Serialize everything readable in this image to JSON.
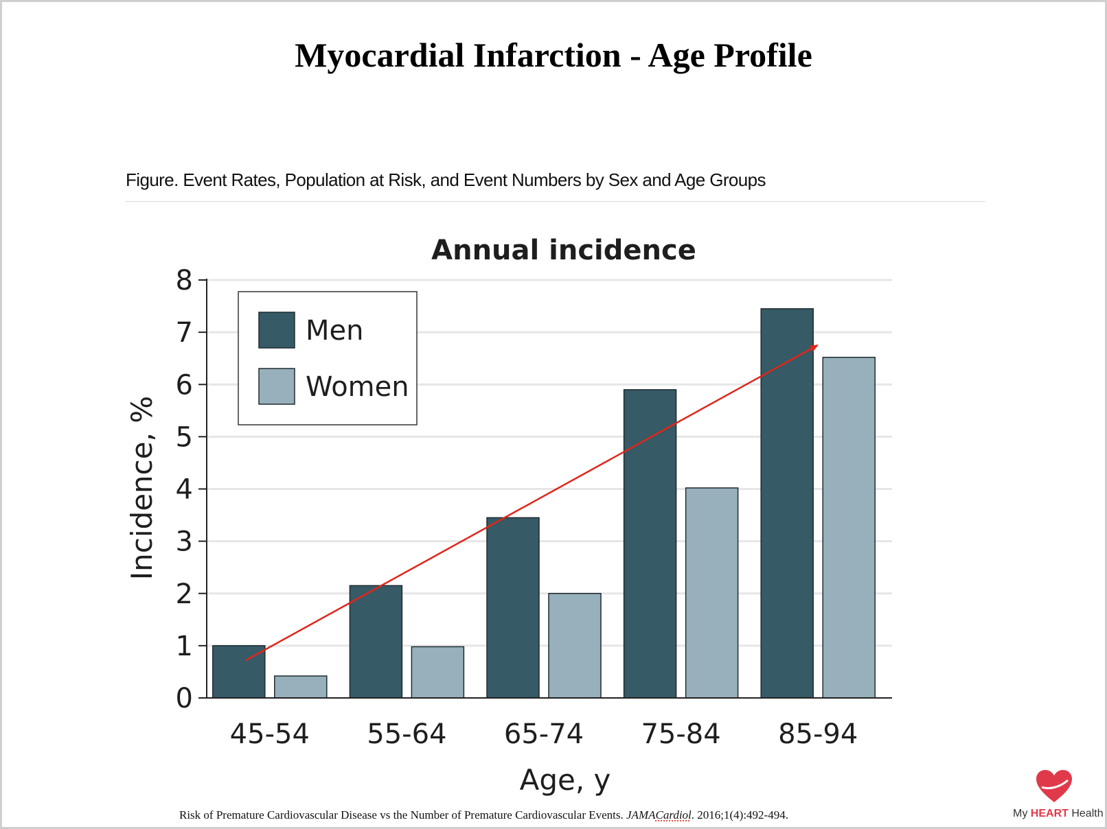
{
  "slide": {
    "title": "Myocardial Infarction - Age Profile",
    "figure_caption": "Figure. Event Rates, Population at Risk, and Event Numbers by Sex and Age Groups"
  },
  "colors": {
    "men": "#365a66",
    "women": "#97b0bb",
    "arrow": "#e0261a",
    "grid": "#e6e6e6"
  },
  "chart_data": {
    "type": "bar",
    "title": "Annual incidence",
    "xlabel": "Age, y",
    "ylabel": "Incidence, %",
    "categories": [
      "45-54",
      "55-64",
      "65-74",
      "75-84",
      "85-94"
    ],
    "series": [
      {
        "name": "Men",
        "values": [
          1.0,
          2.15,
          3.45,
          5.9,
          7.45
        ]
      },
      {
        "name": "Women",
        "values": [
          0.42,
          0.98,
          2.0,
          4.02,
          6.52
        ]
      }
    ],
    "ylim": [
      0,
      8
    ],
    "yticks": [
      "0",
      "1",
      "2",
      "3",
      "4",
      "5",
      "6",
      "7",
      "8"
    ],
    "grid": true,
    "legend_position": "top-left",
    "trend_arrow": {
      "from": {
        "x": "45-54",
        "y": 0.72
      },
      "to": {
        "x": "85-94",
        "y": 6.75
      }
    }
  },
  "footer": {
    "citation_pre": "Risk of Premature Cardiovascular Disease vs the Number of Premature Cardiovascular Events.",
    "journal": "JAMA",
    "journal_underlined": "Cardiol",
    "citation_post": ". 2016;1(4):492-494."
  },
  "brand": {
    "prefix": "My ",
    "strong": "HEART",
    "suffix": " Health",
    "icon": "heart-icon"
  }
}
